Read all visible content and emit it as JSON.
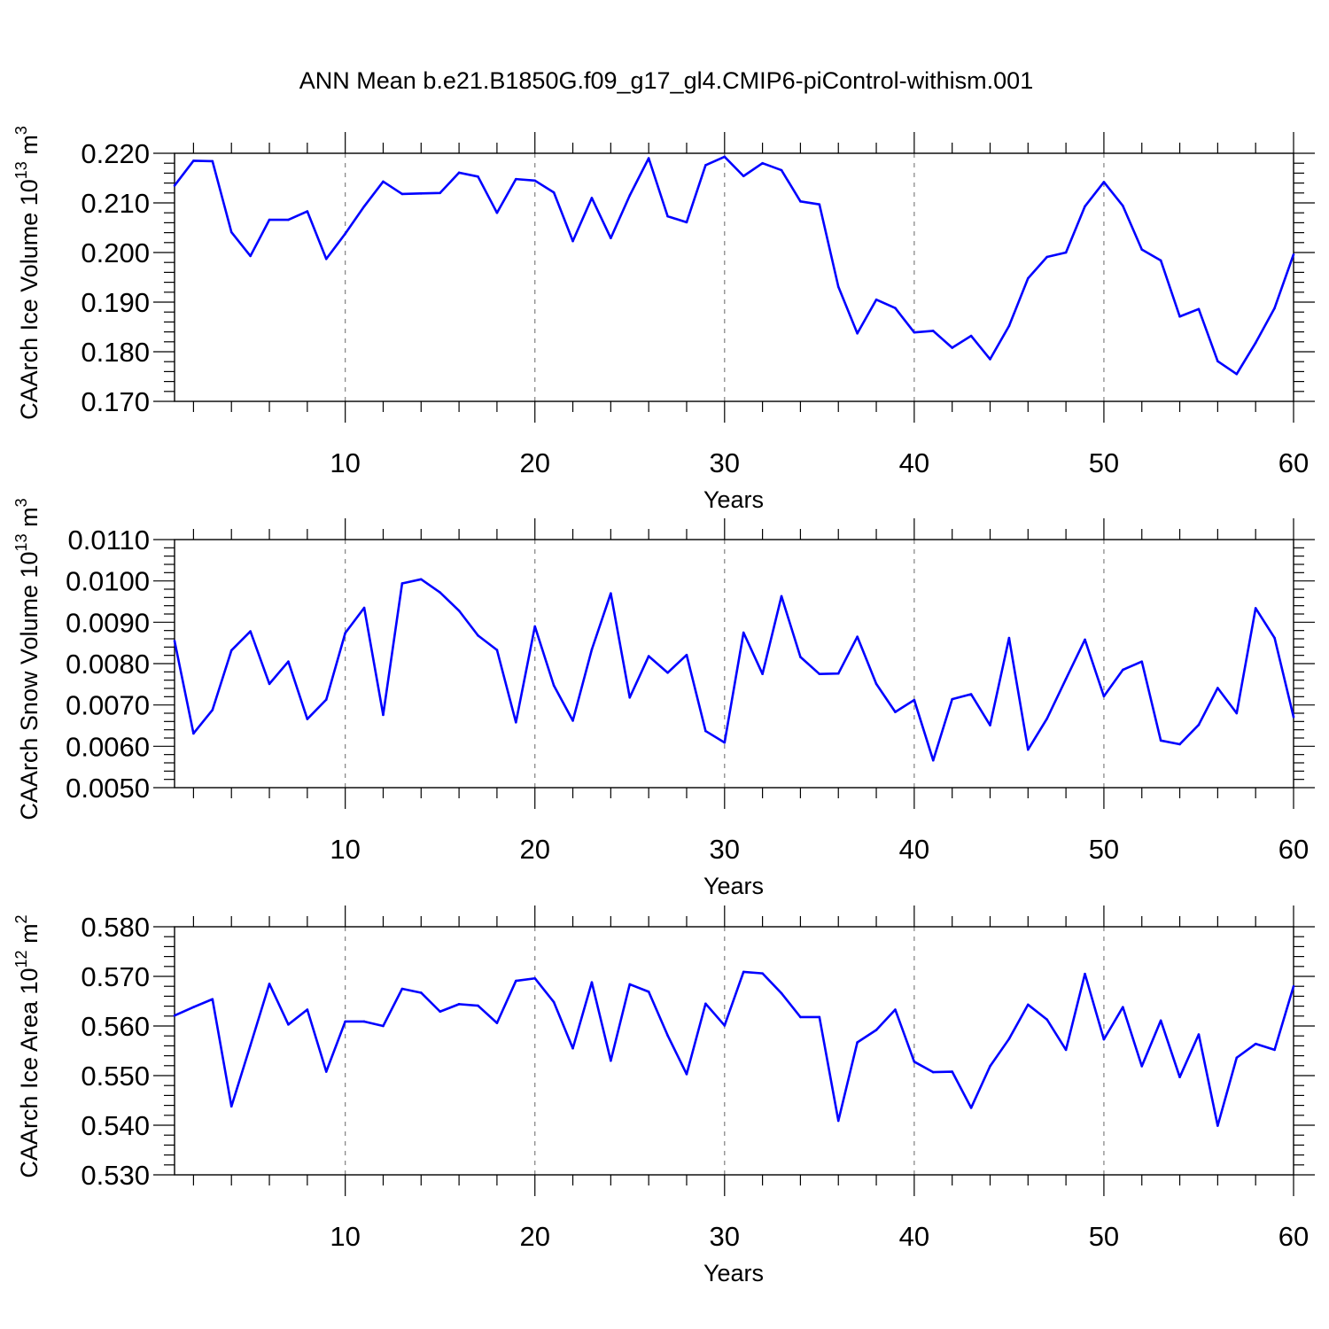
{
  "title": "ANN Mean b.e21.B1850G.f09_g17_gl4.CMIP6-piControl-withism.001",
  "colors": {
    "line": "#0000ff",
    "axes": "#000000",
    "grid": "#808080"
  },
  "chart_data": [
    {
      "type": "line",
      "ylabel_main": "CAArch Ice Volume 10",
      "ylabel_exp": "13",
      "ylabel_unit": " m",
      "ylabel_unit_exp": "3",
      "xlabel": "Years",
      "xlim": [
        1,
        60
      ],
      "ylim": [
        0.17,
        0.22
      ],
      "xticks": [
        10,
        20,
        30,
        40,
        50,
        60
      ],
      "yticks": [
        "0.170",
        "0.180",
        "0.190",
        "0.200",
        "0.210",
        "0.220"
      ],
      "grid": "vertical dashed at major x ticks",
      "x": [
        1,
        2,
        3,
        4,
        5,
        6,
        7,
        8,
        9,
        10,
        11,
        12,
        13,
        14,
        15,
        16,
        17,
        18,
        19,
        20,
        21,
        22,
        23,
        24,
        25,
        26,
        27,
        28,
        29,
        30,
        31,
        32,
        33,
        34,
        35,
        36,
        37,
        38,
        39,
        40,
        41,
        42,
        43,
        44,
        45,
        46,
        47,
        48,
        49,
        50,
        51,
        52,
        53,
        54,
        55,
        56,
        57,
        58,
        59,
        60
      ],
      "values": [
        0.2135,
        0.2185,
        0.2184,
        0.2041,
        0.1993,
        0.2066,
        0.2066,
        0.2083,
        0.1987,
        0.2038,
        0.2093,
        0.2143,
        0.2118,
        0.2119,
        0.212,
        0.2161,
        0.2153,
        0.208,
        0.2148,
        0.2145,
        0.2121,
        0.2023,
        0.211,
        0.2029,
        0.2115,
        0.219,
        0.2073,
        0.2061,
        0.2176,
        0.2193,
        0.2154,
        0.218,
        0.2166,
        0.2103,
        0.2097,
        0.1931,
        0.1837,
        0.1905,
        0.1888,
        0.1839,
        0.1842,
        0.1808,
        0.1832,
        0.1785,
        0.1852,
        0.1948,
        0.1991,
        0.2,
        0.2093,
        0.2142,
        0.2094,
        0.2006,
        0.1984,
        0.1871,
        0.1886,
        0.1781,
        0.1755,
        0.1818,
        0.1888,
        0.1996
      ]
    },
    {
      "type": "line",
      "ylabel_main": "CAArch Snow Volume 10",
      "ylabel_exp": "13",
      "ylabel_unit": " m",
      "ylabel_unit_exp": "3",
      "xlabel": "Years",
      "xlim": [
        1,
        60
      ],
      "ylim": [
        0.005,
        0.011
      ],
      "xticks": [
        10,
        20,
        30,
        40,
        50,
        60
      ],
      "yticks": [
        "0.0050",
        "0.0060",
        "0.0070",
        "0.0080",
        "0.0090",
        "0.0100",
        "0.0110"
      ],
      "grid": "vertical dashed at major x ticks",
      "x": [
        1,
        2,
        3,
        4,
        5,
        6,
        7,
        8,
        9,
        10,
        11,
        12,
        13,
        14,
        15,
        16,
        17,
        18,
        19,
        20,
        21,
        22,
        23,
        24,
        25,
        26,
        27,
        28,
        29,
        30,
        31,
        32,
        33,
        34,
        35,
        36,
        37,
        38,
        39,
        40,
        41,
        42,
        43,
        44,
        45,
        46,
        47,
        48,
        49,
        50,
        51,
        52,
        53,
        54,
        55,
        56,
        57,
        58,
        59,
        60
      ],
      "values": [
        0.00855,
        0.00631,
        0.00688,
        0.00832,
        0.00878,
        0.00751,
        0.00805,
        0.00666,
        0.00713,
        0.00874,
        0.00935,
        0.00676,
        0.00994,
        0.01004,
        0.00972,
        0.00928,
        0.00868,
        0.00833,
        0.00658,
        0.0089,
        0.00747,
        0.00662,
        0.00834,
        0.0097,
        0.00718,
        0.00818,
        0.00778,
        0.00821,
        0.00637,
        0.00609,
        0.00875,
        0.00775,
        0.00963,
        0.00816,
        0.00775,
        0.00776,
        0.00865,
        0.00751,
        0.00683,
        0.00712,
        0.00566,
        0.00714,
        0.00726,
        0.00651,
        0.00862,
        0.00592,
        0.00667,
        0.00763,
        0.00858,
        0.00721,
        0.00785,
        0.00805,
        0.00614,
        0.00605,
        0.00652,
        0.00741,
        0.0068,
        0.00934,
        0.00862,
        0.00671
      ]
    },
    {
      "type": "line",
      "ylabel_main": "CAArch Ice Area 10",
      "ylabel_exp": "12",
      "ylabel_unit": " m",
      "ylabel_unit_exp": "2",
      "xlabel": "Years",
      "xlim": [
        1,
        60
      ],
      "ylim": [
        0.53,
        0.58
      ],
      "xticks": [
        10,
        20,
        30,
        40,
        50,
        60
      ],
      "yticks": [
        "0.530",
        "0.540",
        "0.550",
        "0.560",
        "0.570",
        "0.580"
      ],
      "grid": "vertical dashed at major x ticks",
      "x": [
        1,
        2,
        3,
        4,
        5,
        6,
        7,
        8,
        9,
        10,
        11,
        12,
        13,
        14,
        15,
        16,
        17,
        18,
        19,
        20,
        21,
        22,
        23,
        24,
        25,
        26,
        27,
        28,
        29,
        30,
        31,
        32,
        33,
        34,
        35,
        36,
        37,
        38,
        39,
        40,
        41,
        42,
        43,
        44,
        45,
        46,
        47,
        48,
        49,
        50,
        51,
        52,
        53,
        54,
        55,
        56,
        57,
        58,
        59,
        60
      ],
      "values": [
        0.5621,
        0.5638,
        0.5654,
        0.5438,
        0.5561,
        0.5685,
        0.5603,
        0.5633,
        0.5508,
        0.5609,
        0.5609,
        0.56,
        0.5675,
        0.5667,
        0.5629,
        0.5644,
        0.5641,
        0.5606,
        0.5691,
        0.5696,
        0.5648,
        0.5555,
        0.5688,
        0.553,
        0.5684,
        0.5669,
        0.5581,
        0.5503,
        0.5645,
        0.5601,
        0.5709,
        0.5706,
        0.5666,
        0.5618,
        0.5618,
        0.5409,
        0.5567,
        0.5592,
        0.5633,
        0.5528,
        0.5507,
        0.5508,
        0.5435,
        0.5519,
        0.5574,
        0.5643,
        0.5613,
        0.5552,
        0.5705,
        0.5573,
        0.5638,
        0.5519,
        0.5611,
        0.5497,
        0.5583,
        0.5399,
        0.5536,
        0.5564,
        0.5552,
        0.568
      ]
    }
  ]
}
